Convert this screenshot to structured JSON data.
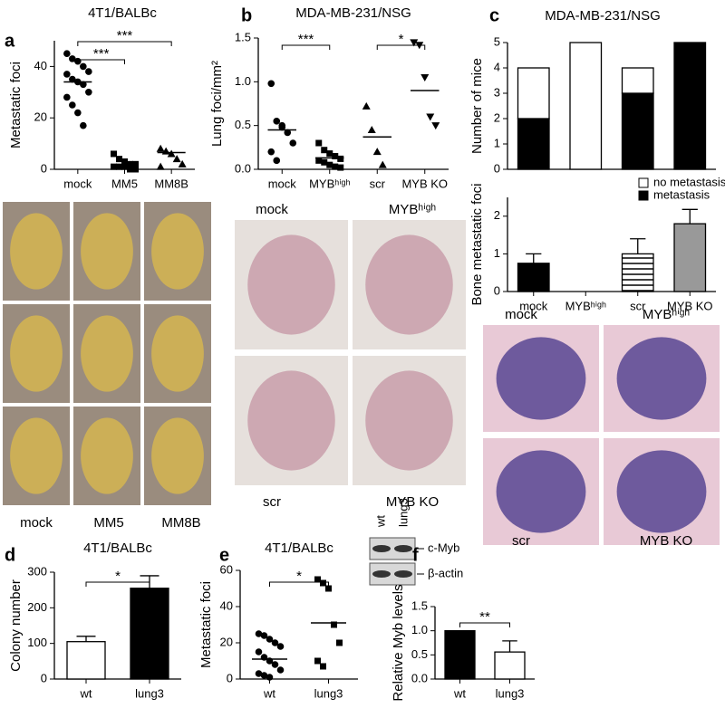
{
  "chart_data": [
    {
      "type": "dot",
      "title": "4T1/BALBc",
      "y_label": "Metastatic foci",
      "categories": [
        "mock",
        "MM5",
        "MM8B"
      ],
      "markers": [
        "circle",
        "square",
        "triangle"
      ],
      "points": [
        [
          45,
          43,
          42,
          40,
          38,
          37,
          35,
          34,
          33,
          30,
          28,
          25,
          22,
          17
        ],
        [
          6,
          4,
          3,
          2,
          2,
          1,
          1,
          1,
          0,
          0
        ],
        [
          8,
          7,
          6,
          4,
          2,
          1
        ]
      ],
      "means": [
        34,
        1.5,
        6.5
      ],
      "ylim": [
        0,
        50
      ],
      "yticks": [
        0,
        20,
        40
      ],
      "annotations": [
        "***",
        "***"
      ]
    },
    {
      "type": "dot",
      "title": "MDA-MB-231/NSG",
      "y_label": "Lung foci/mm²",
      "categories": [
        "mock",
        "MYBʰⁱᵍʰ",
        "scr",
        "MYB KO"
      ],
      "markers": [
        "circle",
        "square",
        "triangle",
        "triangle-down"
      ],
      "points": [
        [
          0.98,
          0.55,
          0.48,
          0.42,
          0.3,
          0.2,
          0.1,
          0.5
        ],
        [
          0.3,
          0.22,
          0.18,
          0.15,
          0.12,
          0.1,
          0.08,
          0.05,
          0.03,
          0.02
        ],
        [
          0.72,
          0.45,
          0.2,
          0.05
        ],
        [
          1.45,
          1.42,
          1.05,
          0.6,
          0.5
        ]
      ],
      "means": [
        0.45,
        0.13,
        0.37,
        0.9
      ],
      "ylim": [
        0,
        1.5
      ],
      "yticks": [
        {
          "value": 0,
          "label": "0.0"
        },
        0.5,
        {
          "value": 1,
          "label": "1.0"
        },
        1.5
      ],
      "annotations": [
        "***",
        "*"
      ]
    },
    {
      "type": "stacked_bar",
      "title": "MDA-MB-231/NSG",
      "y_label": "Number of mice",
      "series": [
        {
          "name": "metastasis",
          "color": "#000000",
          "values": [
            2,
            0,
            3,
            5
          ]
        },
        {
          "name": "no metastasis",
          "color": "#ffffff",
          "values": [
            2,
            5,
            1,
            0
          ]
        }
      ],
      "ylim": [
        0,
        5
      ],
      "yticks": [
        0,
        1,
        2,
        3,
        4,
        5
      ]
    },
    {
      "type": "bar",
      "y_label": "Bone metastatic foci",
      "categories": [
        "mock",
        "MYBʰⁱᵍʰ",
        "scr",
        "MYB KO"
      ],
      "values": [
        0.75,
        0,
        1,
        1.8
      ],
      "errors": [
        0.25,
        0,
        0.4,
        0.38
      ],
      "colors": [
        "#000000",
        "#000000",
        "#ffffff",
        "#999999"
      ],
      "hatch": [
        false,
        false,
        true,
        false
      ],
      "ylim": [
        0,
        2.5
      ],
      "yticks": [
        0,
        1,
        2
      ]
    },
    {
      "type": "bar",
      "title": "4T1/BALBc",
      "y_label": "Colony number",
      "categories": [
        "wt",
        "lung3"
      ],
      "values": [
        105,
        255
      ],
      "errors": [
        15,
        35
      ],
      "colors": [
        "#ffffff",
        "#000000"
      ],
      "hatch": [
        false,
        false
      ],
      "ylim": [
        0,
        300
      ],
      "yticks": [
        0,
        100,
        200,
        300
      ],
      "annotations": [
        "*"
      ]
    },
    {
      "type": "dot",
      "title": "4T1/BALBc",
      "y_label": "Metastatic foci",
      "categories": [
        "wt",
        "lung3"
      ],
      "markers": [
        "circle",
        "square"
      ],
      "points": [
        [
          25,
          24,
          22,
          20,
          18,
          15,
          12,
          10,
          8,
          5,
          3,
          2,
          1
        ],
        [
          55,
          53,
          50,
          30,
          20,
          10,
          7
        ]
      ],
      "means": [
        11,
        31
      ],
      "ylim": [
        0,
        60
      ],
      "yticks": [
        0,
        20,
        40,
        60
      ],
      "annotations": [
        "*"
      ]
    },
    {
      "type": "bar",
      "y_label": "Relative Myb levels",
      "categories": [
        "wt",
        "lung3"
      ],
      "values": [
        1.0,
        0.56
      ],
      "errors": [
        0,
        0.23
      ],
      "colors": [
        "#000000",
        "#ffffff"
      ],
      "hatch": [
        false,
        false
      ],
      "ylim": [
        0,
        1.5
      ],
      "yticks": [
        {
          "value": 0,
          "label": "0.0"
        },
        0.5,
        {
          "value": 1,
          "label": "1.0"
        },
        1.5
      ],
      "annotations": [
        "**"
      ]
    }
  ],
  "figure": {
    "panel_labels": [
      "a",
      "b",
      "c",
      "d",
      "e",
      "f"
    ],
    "a_images": [
      "mock",
      "MM5",
      "MM8B"
    ],
    "b_images": [
      "mock",
      "MYBʰⁱᵍʰ",
      "scr",
      "MYB KO"
    ],
    "c_images": [
      "mock",
      "MYBʰⁱᵍʰ",
      "scr",
      "MYB KO"
    ],
    "blot": {
      "lanes": [
        "wt",
        "lung3"
      ],
      "bands": [
        "c-Myb",
        "β-actin"
      ]
    }
  }
}
